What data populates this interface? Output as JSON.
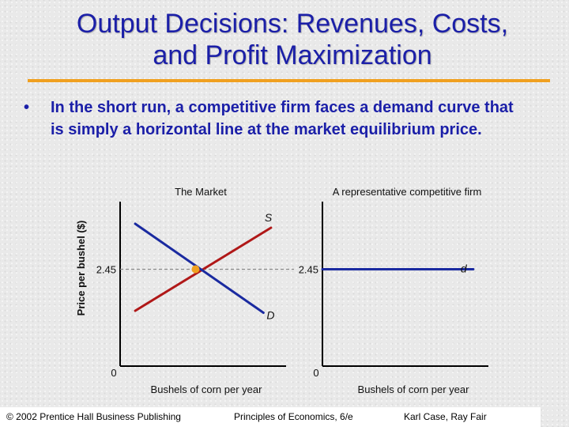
{
  "slide": {
    "title_line1": "Output Decisions:  Revenues, Costs,",
    "title_line2": "and Profit Maximization",
    "bullet": "In the short run, a competitive firm faces a demand curve that is simply a horizontal line at the market equilibrium price.",
    "accent_color": "#f0a020",
    "title_color": "#1b1fa8"
  },
  "chart_data": [
    {
      "type": "line",
      "title": "The Market",
      "ylabel": "Price per bushel ($)",
      "xlabel": "Bushels of corn per year",
      "origin_label": "0",
      "price_label": "2.45",
      "equilibrium_price": 2.45,
      "series": [
        {
          "name": "S",
          "color": "#b01818",
          "points": [
            [
              0.1,
              1.4
            ],
            [
              1.0,
              3.5
            ]
          ]
        },
        {
          "name": "D",
          "color": "#1a2aa0",
          "points": [
            [
              0.1,
              3.6
            ],
            [
              0.95,
              1.35
            ]
          ]
        }
      ],
      "equilibrium_point": [
        0.5,
        2.45
      ],
      "equilibrium_color": "#f0a020",
      "xlim": [
        0,
        1.1
      ],
      "ylim": [
        0,
        4.0
      ]
    },
    {
      "type": "line",
      "title": "A representative competitive firm",
      "xlabel": "Bushels of corn per year",
      "origin_label": "0",
      "price_label": "2.45",
      "series": [
        {
          "name": "d",
          "color": "#1a2aa0",
          "points": [
            [
              0,
              2.45
            ],
            [
              1.0,
              2.45
            ]
          ]
        }
      ],
      "xlim": [
        0,
        1.1
      ],
      "ylim": [
        0,
        4.0
      ]
    }
  ],
  "footer": {
    "copyright": "© 2002 Prentice Hall Business Publishing",
    "book": "Principles of Economics, 6/e",
    "authors": "Karl Case, Ray Fair"
  }
}
